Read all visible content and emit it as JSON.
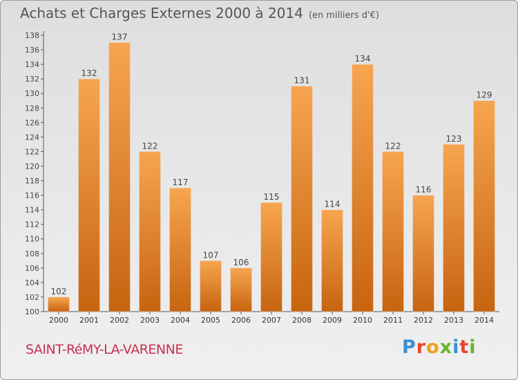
{
  "title": "Achats et Charges Externes 2000 à 2014",
  "unit": "(en milliers d'€)",
  "commune": "SAINT-RéMY-LA-VARENNE",
  "logo": {
    "text": "Proxiti",
    "colors": [
      "#3a8fd0",
      "#e8452c",
      "#f0a020",
      "#69b130",
      "#3a8fd0",
      "#e8452c",
      "#69b130"
    ]
  },
  "colors": {
    "bar_light": "#f7a550",
    "bar_dark": "#c76410",
    "background": "#e6e6e6"
  },
  "chart_data": {
    "type": "bar",
    "categories": [
      "2000",
      "2001",
      "2002",
      "2003",
      "2004",
      "2005",
      "2006",
      "2007",
      "2008",
      "2009",
      "2010",
      "2011",
      "2012",
      "2013",
      "2014"
    ],
    "values": [
      102,
      132,
      137,
      122,
      117,
      107,
      106,
      115,
      131,
      114,
      134,
      122,
      116,
      123,
      129
    ],
    "ylim": [
      100,
      138
    ],
    "yticks": [
      100,
      102,
      104,
      106,
      108,
      110,
      112,
      114,
      116,
      118,
      120,
      122,
      124,
      126,
      128,
      130,
      132,
      134,
      136,
      138
    ],
    "grid": false
  }
}
